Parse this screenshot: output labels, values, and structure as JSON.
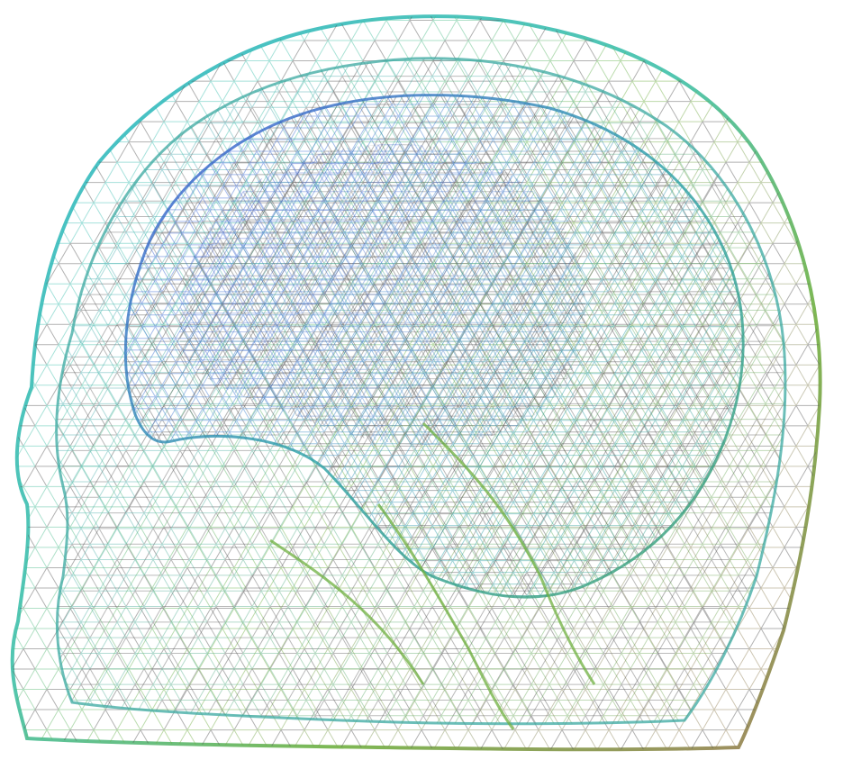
{
  "figure": {
    "subject": "wireframe-head-mesh",
    "background_color": "#ffffff",
    "layers": [
      {
        "name": "scalp",
        "colors": [
          "#2fb8c8",
          "#3fc0a8",
          "#6fb040",
          "#8a8a60",
          "#9a7a50"
        ]
      },
      {
        "name": "skull",
        "colors": [
          "#2a9ab0",
          "#3aa8a0",
          "#58a858",
          "#7a9a40"
        ]
      },
      {
        "name": "brain",
        "colors": [
          "#3a50d8",
          "#3a7ad0",
          "#2aa0a8",
          "#3aa070"
        ]
      },
      {
        "name": "inner",
        "colors": [
          "#2a40c0",
          "#3060c8",
          "#3090a8"
        ]
      }
    ],
    "edge_color": "#555555"
  }
}
